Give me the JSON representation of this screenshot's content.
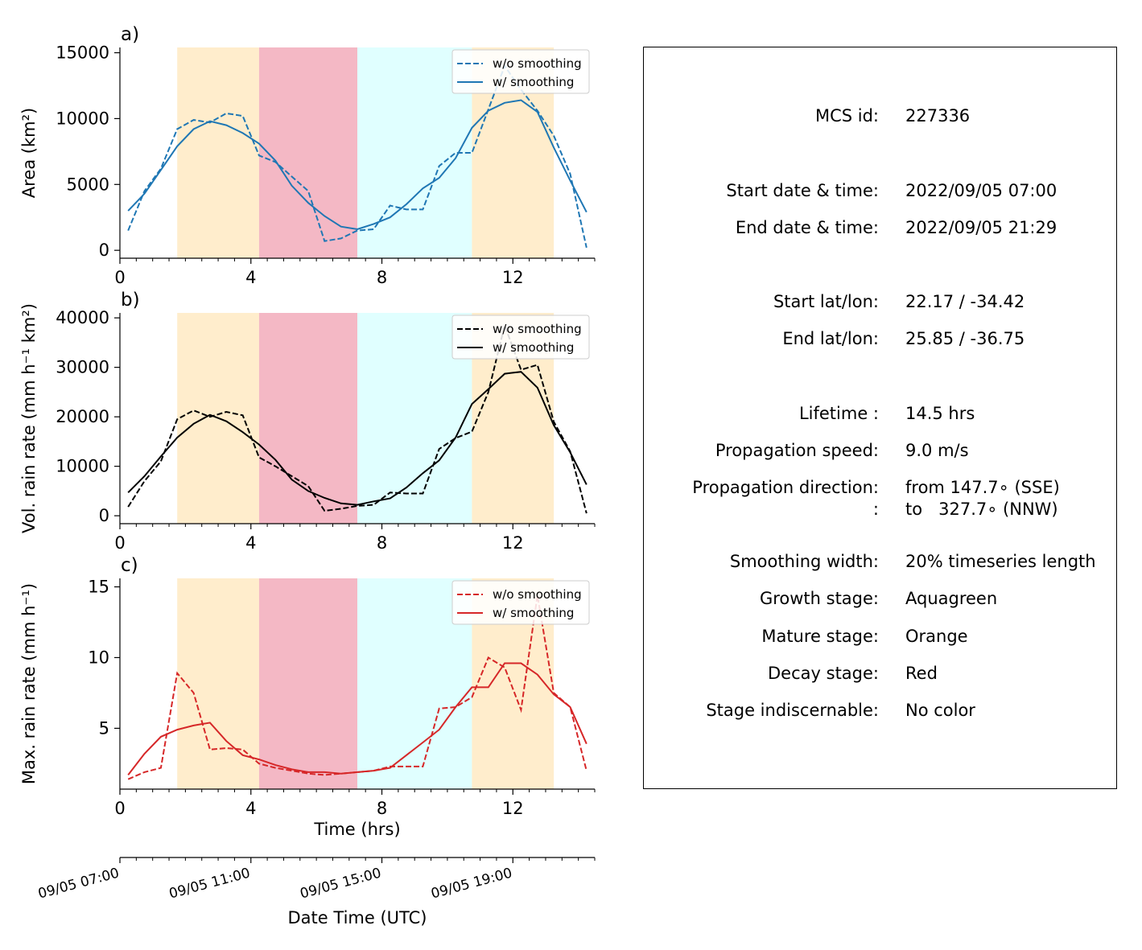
{
  "colors": {
    "area": "#1f77b4",
    "volrain": "#000000",
    "maxrain": "#d62728",
    "growth": "#e0ffff",
    "mature": "#ffedcc",
    "decay": "#f4b8c5"
  },
  "stages": [
    {
      "stage": "mature",
      "x0": 1.75,
      "x1": 4.25
    },
    {
      "stage": "decay",
      "x0": 4.25,
      "x1": 7.25
    },
    {
      "stage": "growth",
      "x0": 7.25,
      "x1": 10.75
    },
    {
      "stage": "mature",
      "x0": 10.75,
      "x1": 13.25
    }
  ],
  "chart_data": [
    {
      "type": "line",
      "panel_label": "a)",
      "ylabel_html": "Area  (km²)",
      "xlim": [
        0,
        14.5
      ],
      "ylim": [
        -600,
        15400
      ],
      "xticks": [
        0,
        4,
        8,
        12
      ],
      "yticks": [
        0,
        5000,
        10000,
        15000
      ],
      "color_key": "area",
      "x": [
        0.25,
        0.75,
        1.25,
        1.75,
        2.25,
        2.75,
        3.25,
        3.75,
        4.25,
        4.75,
        5.25,
        5.75,
        6.25,
        6.75,
        7.25,
        7.75,
        8.25,
        8.75,
        9.25,
        9.75,
        10.25,
        10.75,
        11.25,
        11.75,
        12.25,
        12.75,
        13.25,
        13.75,
        14.25
      ],
      "series": [
        {
          "name": "w/o smoothing",
          "style": "dashed",
          "values": [
            1500,
            4500,
            6200,
            9200,
            9900,
            9700,
            10400,
            10200,
            7200,
            6700,
            5600,
            4500,
            700,
            900,
            1500,
            1600,
            3400,
            3100,
            3100,
            6400,
            7400,
            7400,
            10700,
            14000,
            12200,
            10600,
            8700,
            5800,
            200
          ]
        },
        {
          "name": "w/ smoothing",
          "style": "solid",
          "values": [
            3000,
            4300,
            6100,
            7900,
            9200,
            9800,
            9500,
            8900,
            8100,
            6800,
            4900,
            3600,
            2600,
            1800,
            1600,
            2000,
            2500,
            3500,
            4700,
            5500,
            7000,
            9300,
            10600,
            11200,
            11400,
            10500,
            7800,
            5300,
            2900
          ]
        }
      ]
    },
    {
      "type": "line",
      "panel_label": "b)",
      "ylabel_html": "Vol. rain rate (mm h⁻¹ km²)",
      "xlim": [
        0,
        14.5
      ],
      "ylim": [
        -1600,
        41000
      ],
      "xticks": [
        0,
        4,
        8,
        12
      ],
      "yticks": [
        0,
        10000,
        20000,
        30000,
        40000
      ],
      "color_key": "volrain",
      "x": [
        0.25,
        0.75,
        1.25,
        1.75,
        2.25,
        2.75,
        3.25,
        3.75,
        4.25,
        4.75,
        5.25,
        5.75,
        6.25,
        6.75,
        7.25,
        7.75,
        8.25,
        8.75,
        9.25,
        9.75,
        10.25,
        10.75,
        11.25,
        11.75,
        12.25,
        12.75,
        13.25,
        13.75,
        14.25
      ],
      "series": [
        {
          "name": "w/o smoothing",
          "style": "dashed",
          "values": [
            1800,
            7000,
            11000,
            19500,
            21300,
            20000,
            21000,
            20300,
            11800,
            10000,
            8000,
            6000,
            1000,
            1400,
            2000,
            2200,
            4700,
            4500,
            4500,
            13500,
            15700,
            17000,
            25000,
            38500,
            29500,
            30500,
            19000,
            13000,
            500
          ]
        },
        {
          "name": "w/ smoothing",
          "style": "solid",
          "values": [
            4700,
            8000,
            12000,
            15800,
            18600,
            20400,
            19100,
            16900,
            14400,
            11300,
            7300,
            5000,
            3600,
            2500,
            2200,
            2900,
            3500,
            5700,
            8600,
            11200,
            15800,
            22600,
            25600,
            28700,
            29100,
            25900,
            18300,
            12800,
            6300
          ]
        }
      ]
    },
    {
      "type": "line",
      "panel_label": "c)",
      "ylabel_html": "Max. rain rate  (mm h⁻¹)",
      "xlim": [
        0,
        14.5
      ],
      "ylim": [
        0.7,
        15.6
      ],
      "xticks": [
        0,
        4,
        8,
        12
      ],
      "yticks": [
        5,
        10,
        15
      ],
      "color_key": "maxrain",
      "xlabel": "Time (hrs)",
      "x": [
        0.25,
        0.75,
        1.25,
        1.75,
        2.25,
        2.75,
        3.25,
        3.75,
        4.25,
        4.75,
        5.25,
        5.75,
        6.25,
        6.75,
        7.25,
        7.75,
        8.25,
        8.75,
        9.25,
        9.75,
        10.25,
        10.75,
        11.25,
        11.75,
        12.25,
        12.75,
        13.25,
        13.75,
        14.25
      ],
      "series": [
        {
          "name": "w/o smoothing",
          "style": "dashed",
          "values": [
            1.4,
            1.9,
            2.2,
            8.9,
            7.5,
            3.5,
            3.6,
            3.5,
            2.5,
            2.2,
            2.0,
            1.8,
            1.7,
            1.8,
            1.9,
            2.0,
            2.3,
            2.3,
            2.3,
            6.4,
            6.5,
            7.2,
            10.0,
            9.3,
            6.3,
            14.4,
            7.5,
            6.5,
            2.0
          ]
        },
        {
          "name": "w/ smoothing",
          "style": "solid",
          "values": [
            1.7,
            3.2,
            4.4,
            4.9,
            5.2,
            5.4,
            4.1,
            3.1,
            2.8,
            2.4,
            2.1,
            1.9,
            1.9,
            1.8,
            1.9,
            2.0,
            2.2,
            3.1,
            4.0,
            4.9,
            6.5,
            7.9,
            7.9,
            9.6,
            9.6,
            8.8,
            7.4,
            6.5,
            3.9
          ]
        }
      ]
    }
  ],
  "secondary_axis": {
    "xlabel": "Date Time (UTC)",
    "tick_labels": [
      "09/05 07:00",
      "09/05 11:00",
      "09/05 15:00",
      "09/05 19:00"
    ],
    "tick_hours": [
      0,
      4,
      8,
      12
    ]
  },
  "info": [
    {
      "label": "MCS id:",
      "value": "227336"
    },
    {
      "label": "Start date & time:",
      "value": "2022/09/05 07:00"
    },
    {
      "label": "End date & time:",
      "value": "2022/09/05 21:29"
    },
    {
      "label": "Start lat/lon:",
      "value": "22.17 / -34.42"
    },
    {
      "label": "End lat/lon:",
      "value": "25.85 / -36.75"
    },
    {
      "label": "Lifetime :",
      "value": "14.5 hrs"
    },
    {
      "label": "Propagation speed:",
      "value": "9.0 m/s"
    },
    {
      "label": "Propagation direction:",
      "value": "from 147.7∘ (SSE)"
    },
    {
      "label": ":",
      "value": "to   327.7∘ (NNW)"
    },
    {
      "label": "Smoothing width:",
      "value": "20% timeseries length"
    },
    {
      "label": "Growth stage:",
      "value": "Aquagreen"
    },
    {
      "label": "Mature stage:",
      "value": "Orange"
    },
    {
      "label": "Decay stage:",
      "value": "Red"
    },
    {
      "label": "Stage indiscernable:",
      "value": "No color"
    }
  ]
}
